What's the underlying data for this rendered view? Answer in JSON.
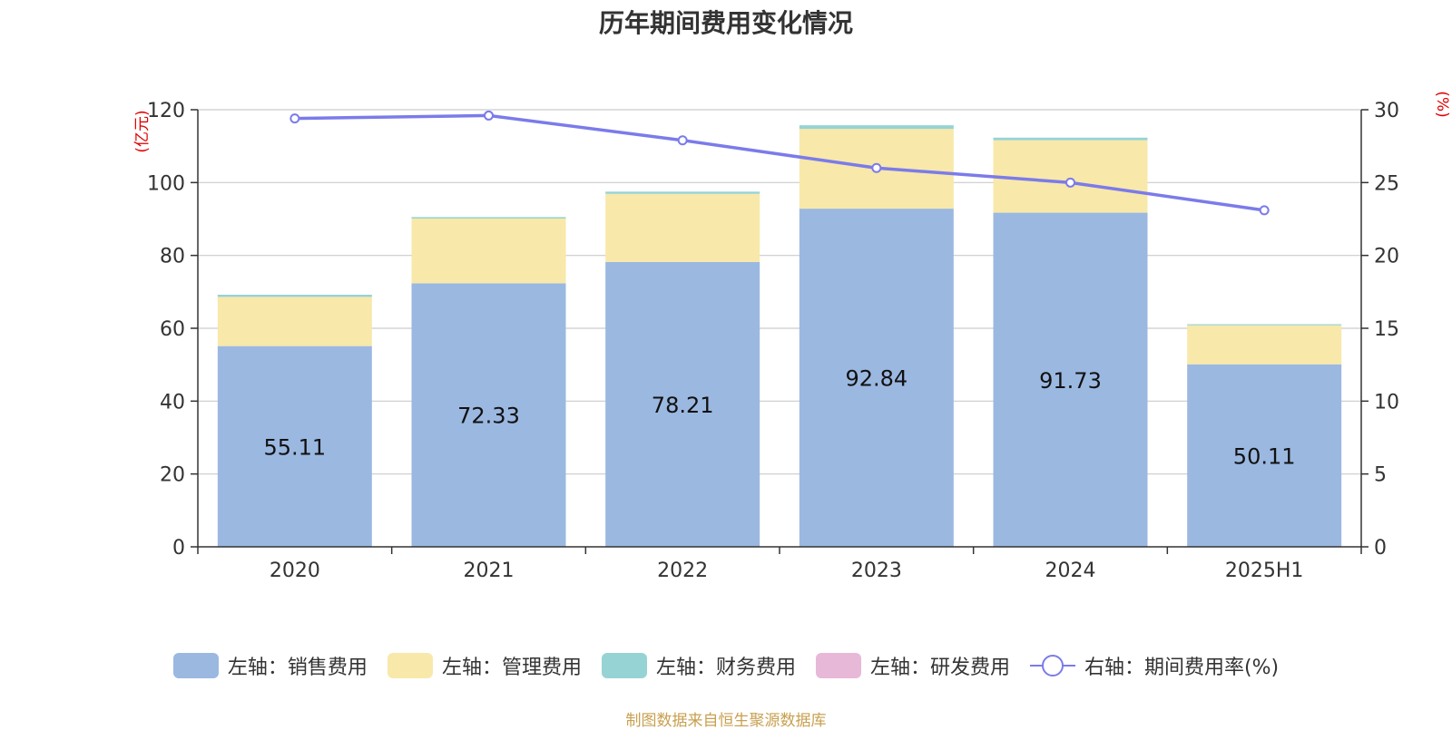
{
  "title": "历年期间费用变化情况",
  "source_note": "制图数据来自恒生聚源数据库",
  "chart_data": {
    "type": "bar",
    "stacked": true,
    "title": "历年期间费用变化情况",
    "categories": [
      "2020",
      "2021",
      "2022",
      "2023",
      "2024",
      "2025H1"
    ],
    "y_left": {
      "unit_label": "(亿元)",
      "range": [
        0,
        120
      ],
      "ticks": [
        "0",
        "20",
        "40",
        "60",
        "80",
        "100",
        "120"
      ]
    },
    "y_right": {
      "unit_label": "(%)",
      "range": [
        0,
        30
      ],
      "ticks": [
        "0",
        "5",
        "10",
        "15",
        "20",
        "25",
        "30"
      ]
    },
    "grid": true,
    "legend_position": "bottom",
    "series": [
      {
        "name": "左轴：销售费用",
        "axis": "left",
        "color": "#9bb8e1",
        "values": [
          55.11,
          72.33,
          78.21,
          92.84,
          91.73,
          50.11
        ],
        "labels": [
          "55.11",
          "72.33",
          "78.21",
          "92.84",
          "91.73",
          "50.11"
        ]
      },
      {
        "name": "左轴：管理费用",
        "axis": "left",
        "color": "#f8e8aa",
        "values": [
          13.5,
          17.8,
          18.7,
          21.9,
          19.9,
          10.7
        ]
      },
      {
        "name": "左轴：财务费用",
        "axis": "left",
        "color": "#96d3d4",
        "values": [
          0.6,
          0.4,
          0.6,
          1.0,
          0.7,
          0.3
        ]
      },
      {
        "name": "左轴：研发费用",
        "axis": "left",
        "color": "#e8b8d8",
        "values": [
          0,
          0,
          0,
          0,
          0,
          0
        ]
      },
      {
        "name": "右轴：期间费用率(%)",
        "axis": "right",
        "type": "line",
        "color": "#7b7bea",
        "values": [
          29.4,
          29.6,
          27.9,
          26.0,
          25.0,
          23.1
        ]
      }
    ]
  }
}
